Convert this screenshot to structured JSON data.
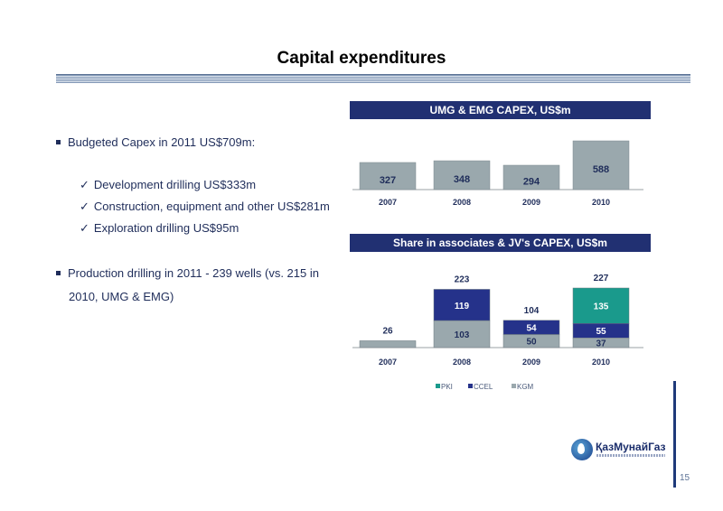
{
  "slide": {
    "title": "Capital expenditures",
    "page_number": "15"
  },
  "bullets": {
    "b1": "Budgeted Capex in 2011 US$709m:",
    "sub": [
      "Development drilling US$333m",
      "Construction, equipment and other US$281m",
      "Exploration drilling US$95m"
    ],
    "b2": "Production drilling in 2011 - 239 wells (vs. 215 in 2010, UMG & EMG)"
  },
  "logo": {
    "text": "ҚазМунайГаз"
  },
  "chart_data": [
    {
      "type": "bar",
      "title": "UMG & EMG CAPEX, US$m",
      "categories": [
        "2007",
        "2008",
        "2009",
        "2010"
      ],
      "values": [
        327,
        348,
        294,
        588
      ],
      "colors": {
        "bar": "#9aa8ad"
      }
    },
    {
      "type": "bar",
      "stacked": true,
      "title": "Share in associates & JV's CAPEX, US$m",
      "categories": [
        "2007",
        "2008",
        "2009",
        "2010"
      ],
      "series": [
        {
          "name": "KGM",
          "values": [
            26,
            103,
            50,
            37
          ],
          "color": "#9aa8ad"
        },
        {
          "name": "CCEL",
          "values": [
            0,
            119,
            54,
            55
          ],
          "color": "#25328a"
        },
        {
          "name": "PKI",
          "values": [
            0,
            0,
            0,
            135
          ],
          "color": "#1a9a8c"
        }
      ],
      "totals": [
        26,
        223,
        104,
        227
      ],
      "legend": "bottom"
    }
  ]
}
